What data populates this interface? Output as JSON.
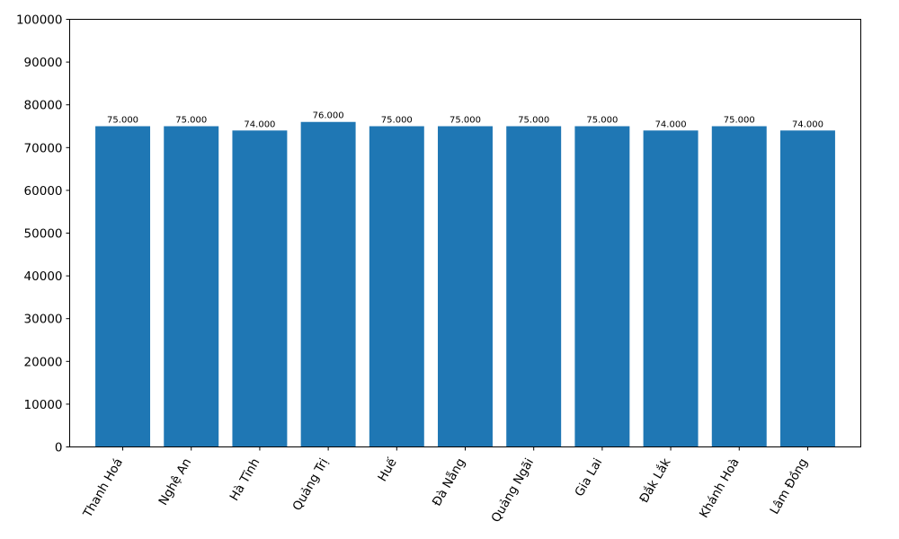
{
  "chart_data": {
    "type": "bar",
    "categories": [
      "Thanh Hoá",
      "Nghệ An",
      "Hà Tĩnh",
      "Quảng Trị",
      "Huế",
      "Đà Nẵng",
      "Quảng Ngãi",
      "Gia Lai",
      "Đắk Lắk",
      "Khánh Hoà",
      "Lâm Đồng"
    ],
    "values": [
      75000,
      75000,
      74000,
      76000,
      75000,
      75000,
      75000,
      75000,
      74000,
      75000,
      74000
    ],
    "value_labels": [
      "75.000",
      "75.000",
      "74.000",
      "76.000",
      "75.000",
      "75.000",
      "75.000",
      "75.000",
      "74.000",
      "75.000",
      "74.000"
    ],
    "ylim": [
      0,
      100000
    ],
    "yticks": [
      0,
      10000,
      20000,
      30000,
      40000,
      50000,
      60000,
      70000,
      80000,
      90000,
      100000
    ],
    "grid": false,
    "bar_color": "#1f77b4",
    "xtick_rotation": 60
  }
}
